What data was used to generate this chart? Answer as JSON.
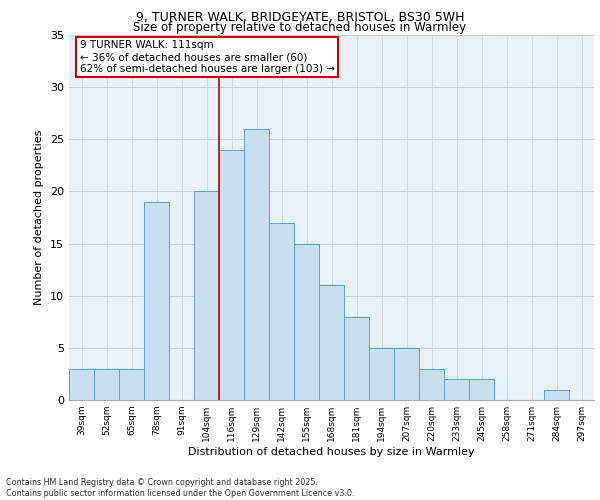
{
  "title_line1": "9, TURNER WALK, BRIDGEYATE, BRISTOL, BS30 5WH",
  "title_line2": "Size of property relative to detached houses in Warmley",
  "xlabel": "Distribution of detached houses by size in Warmley",
  "ylabel": "Number of detached properties",
  "bar_color": "#c9dff0",
  "bar_edge_color": "#5a9fd4",
  "grid_color": "#cccccc",
  "background_color": "#e8f0f8",
  "bins": [
    "39sqm",
    "52sqm",
    "65sqm",
    "78sqm",
    "91sqm",
    "104sqm",
    "116sqm",
    "129sqm",
    "142sqm",
    "155sqm",
    "168sqm",
    "181sqm",
    "194sqm",
    "207sqm",
    "220sqm",
    "233sqm",
    "245sqm",
    "258sqm",
    "271sqm",
    "284sqm",
    "297sqm"
  ],
  "values": [
    3,
    3,
    3,
    19,
    0,
    20,
    24,
    26,
    17,
    15,
    11,
    8,
    5,
    5,
    3,
    2,
    2,
    0,
    0,
    1,
    0
  ],
  "property_line_color": "#cc0000",
  "annotation_text": "9 TURNER WALK: 111sqm\n← 36% of detached houses are smaller (60)\n62% of semi-detached houses are larger (103) →",
  "annotation_box_color": "#ffffff",
  "annotation_box_edge": "#cc0000",
  "ylim": [
    0,
    35
  ],
  "yticks": [
    0,
    5,
    10,
    15,
    20,
    25,
    30,
    35
  ],
  "footer_text": "Contains HM Land Registry data © Crown copyright and database right 2025.\nContains public sector information licensed under the Open Government Licence v3.0."
}
